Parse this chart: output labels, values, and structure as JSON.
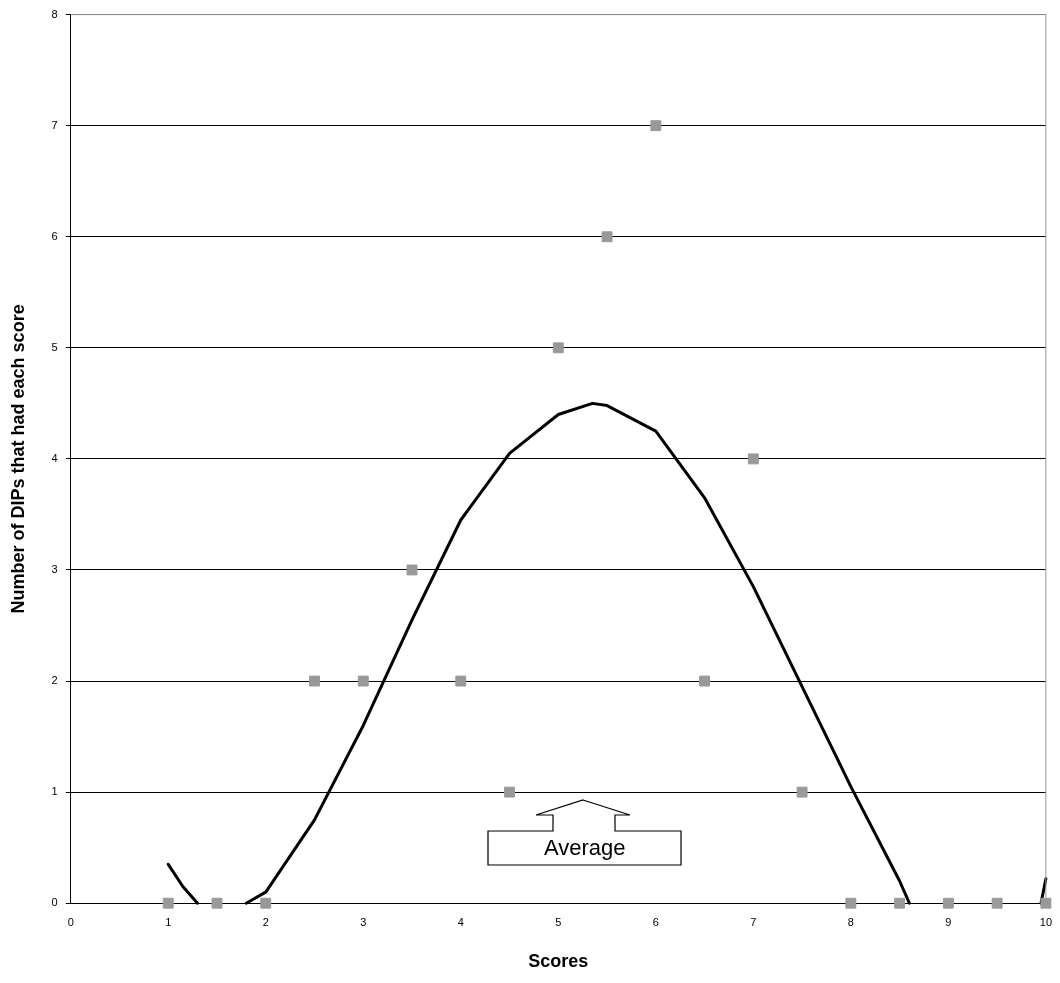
{
  "chart_data": {
    "type": "scatter",
    "xlabel": "Scores",
    "ylabel": "Number of DIPs that had each score",
    "xlim": [
      0,
      10
    ],
    "xticks": [
      0,
      1,
      2,
      3,
      4,
      5,
      6,
      7,
      8,
      9,
      10
    ],
    "ylim": [
      0,
      8
    ],
    "yticks": [
      0,
      1,
      2,
      3,
      4,
      5,
      6,
      7,
      8
    ],
    "grid": "y",
    "legend": false,
    "marker": "square",
    "annotations": [
      "Average"
    ],
    "series": [
      {
        "color": "#999999",
        "x": [
          1,
          1.5,
          2,
          2.5,
          3,
          3.5,
          4,
          4.5,
          5,
          5.5,
          6,
          6.5,
          7,
          7.5,
          8,
          8.5,
          9,
          9.5,
          10
        ],
        "values": [
          0,
          0,
          0,
          2,
          2,
          3,
          2,
          1,
          5,
          6,
          7,
          2,
          4,
          1,
          0,
          0,
          0,
          0,
          0
        ]
      },
      {
        "type": "line",
        "color": "#000000",
        "marker": "none",
        "x": [
          1,
          1.15,
          1.3,
          1.5,
          1.8,
          2,
          2.5,
          3,
          3.5,
          4,
          4.5,
          5,
          5.35,
          5.5,
          6,
          6.5,
          7,
          7.5,
          8,
          8.5,
          8.6,
          9,
          9.95,
          10
        ],
        "values": [
          0.35,
          0.15,
          0,
          null,
          0,
          0.1,
          0.75,
          1.6,
          2.55,
          3.45,
          4.05,
          4.4,
          4.5,
          4.48,
          4.25,
          3.65,
          2.85,
          1.95,
          1.05,
          0.2,
          0,
          null,
          0,
          0.22
        ]
      }
    ]
  }
}
